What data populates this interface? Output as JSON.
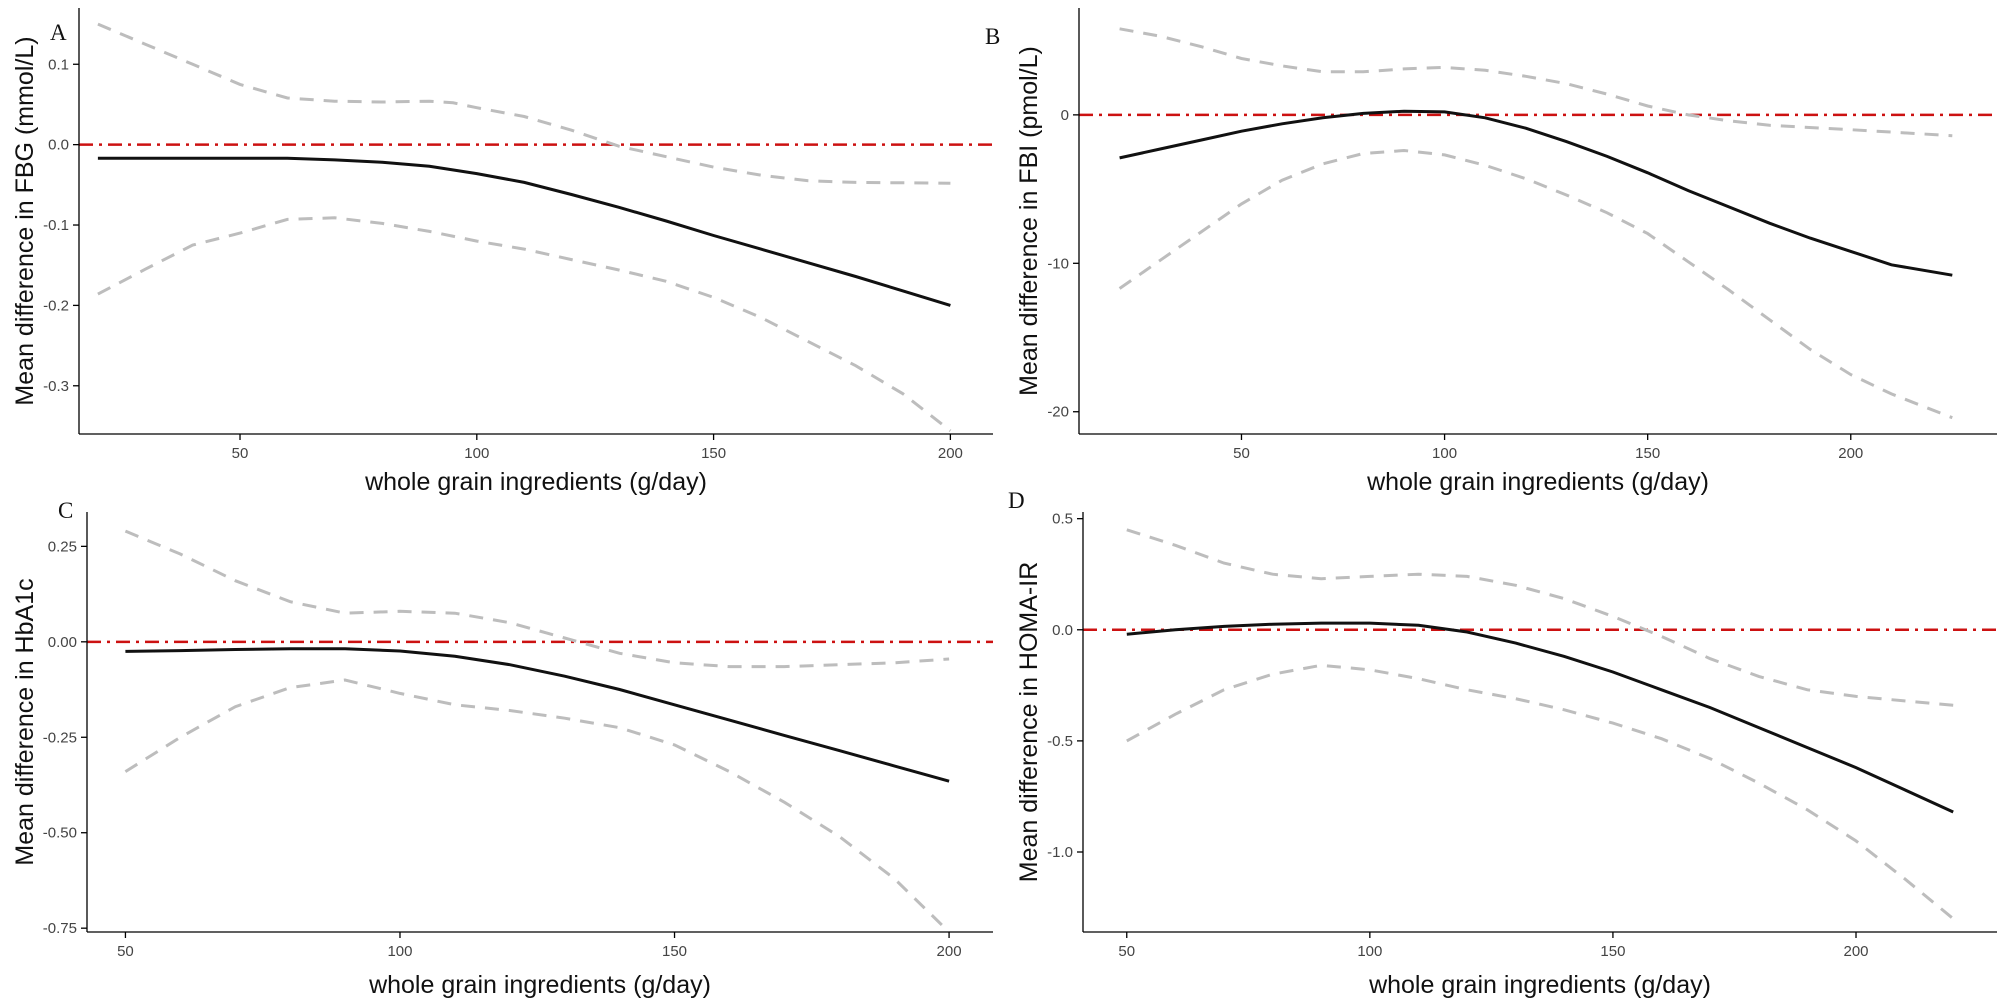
{
  "chart_data": [
    {
      "panel": "A",
      "type": "line",
      "xlabel": "whole grain ingredients (g/day)",
      "ylabel": "Mean difference in FBG (mmol/L)",
      "xlim": [
        16,
        209
      ],
      "ylim": [
        -0.36,
        0.17
      ],
      "xticks": [
        50,
        100,
        150,
        200
      ],
      "yticks": [
        -0.3,
        -0.2,
        -0.1,
        0.0,
        0.1
      ],
      "ytick_labels": [
        "-0.3",
        "-0.2",
        "-0.1",
        "0.0",
        "0.1"
      ],
      "reference_y": 0,
      "series": [
        {
          "role": "estimate",
          "points": [
            [
              20,
              -0.017
            ],
            [
              40,
              -0.017
            ],
            [
              60,
              -0.017
            ],
            [
              70,
              -0.019
            ],
            [
              80,
              -0.022
            ],
            [
              90,
              -0.027
            ],
            [
              100,
              -0.036
            ],
            [
              110,
              -0.047
            ],
            [
              120,
              -0.062
            ],
            [
              130,
              -0.078
            ],
            [
              140,
              -0.095
            ],
            [
              150,
              -0.113
            ],
            [
              160,
              -0.13
            ],
            [
              170,
              -0.147
            ],
            [
              180,
              -0.164
            ],
            [
              190,
              -0.182
            ],
            [
              200,
              -0.2
            ]
          ]
        },
        {
          "role": "upper",
          "points": [
            [
              20,
              0.15
            ],
            [
              30,
              0.125
            ],
            [
              40,
              0.1
            ],
            [
              50,
              0.075
            ],
            [
              60,
              0.058
            ],
            [
              70,
              0.054
            ],
            [
              80,
              0.053
            ],
            [
              90,
              0.054
            ],
            [
              95,
              0.052
            ],
            [
              100,
              0.046
            ],
            [
              110,
              0.035
            ],
            [
              120,
              0.018
            ],
            [
              130,
              -0.002
            ],
            [
              140,
              -0.015
            ],
            [
              150,
              -0.028
            ],
            [
              160,
              -0.038
            ],
            [
              170,
              -0.045
            ],
            [
              180,
              -0.047
            ],
            [
              200,
              -0.048
            ]
          ]
        },
        {
          "role": "lower",
          "points": [
            [
              20,
              -0.186
            ],
            [
              30,
              -0.155
            ],
            [
              40,
              -0.125
            ],
            [
              50,
              -0.11
            ],
            [
              60,
              -0.093
            ],
            [
              70,
              -0.091
            ],
            [
              80,
              -0.098
            ],
            [
              90,
              -0.108
            ],
            [
              100,
              -0.12
            ],
            [
              110,
              -0.13
            ],
            [
              120,
              -0.143
            ],
            [
              130,
              -0.156
            ],
            [
              140,
              -0.17
            ],
            [
              150,
              -0.19
            ],
            [
              160,
              -0.215
            ],
            [
              170,
              -0.245
            ],
            [
              180,
              -0.275
            ],
            [
              190,
              -0.31
            ],
            [
              200,
              -0.356
            ]
          ]
        }
      ]
    },
    {
      "panel": "B",
      "type": "line",
      "xlabel": "whole grain ingredients (g/day)",
      "ylabel": "Mean difference in FBI (pmol/L)",
      "xlim": [
        10,
        236
      ],
      "ylim": [
        -21.5,
        7.2
      ],
      "xticks": [
        50,
        100,
        150,
        200
      ],
      "yticks": [
        -20,
        -10,
        0
      ],
      "ytick_labels": [
        "-20",
        "-10",
        "0"
      ],
      "reference_y": 0,
      "series": [
        {
          "role": "estimate",
          "points": [
            [
              20,
              -2.9
            ],
            [
              30,
              -2.3
            ],
            [
              40,
              -1.7
            ],
            [
              50,
              -1.1
            ],
            [
              60,
              -0.6
            ],
            [
              70,
              -0.2
            ],
            [
              80,
              0.1
            ],
            [
              90,
              0.25
            ],
            [
              100,
              0.2
            ],
            [
              110,
              -0.2
            ],
            [
              120,
              -0.9
            ],
            [
              130,
              -1.8
            ],
            [
              140,
              -2.8
            ],
            [
              150,
              -3.9
            ],
            [
              160,
              -5.1
            ],
            [
              170,
              -6.2
            ],
            [
              180,
              -7.3
            ],
            [
              190,
              -8.3
            ],
            [
              200,
              -9.2
            ],
            [
              210,
              -10.1
            ],
            [
              225,
              -10.8
            ]
          ]
        },
        {
          "role": "upper",
          "points": [
            [
              20,
              5.8
            ],
            [
              30,
              5.3
            ],
            [
              40,
              4.6
            ],
            [
              50,
              3.8
            ],
            [
              60,
              3.3
            ],
            [
              70,
              2.9
            ],
            [
              80,
              2.9
            ],
            [
              90,
              3.1
            ],
            [
              100,
              3.2
            ],
            [
              110,
              3.0
            ],
            [
              120,
              2.6
            ],
            [
              130,
              2.1
            ],
            [
              140,
              1.4
            ],
            [
              150,
              0.6
            ],
            [
              160,
              0.0
            ],
            [
              170,
              -0.4
            ],
            [
              180,
              -0.7
            ],
            [
              200,
              -1.0
            ],
            [
              225,
              -1.4
            ]
          ]
        },
        {
          "role": "lower",
          "points": [
            [
              20,
              -11.7
            ],
            [
              30,
              -9.8
            ],
            [
              40,
              -7.9
            ],
            [
              50,
              -6.0
            ],
            [
              60,
              -4.4
            ],
            [
              70,
              -3.3
            ],
            [
              80,
              -2.6
            ],
            [
              90,
              -2.4
            ],
            [
              100,
              -2.7
            ],
            [
              110,
              -3.4
            ],
            [
              120,
              -4.3
            ],
            [
              130,
              -5.4
            ],
            [
              140,
              -6.6
            ],
            [
              150,
              -8.0
            ],
            [
              160,
              -9.9
            ],
            [
              170,
              -11.8
            ],
            [
              180,
              -13.8
            ],
            [
              190,
              -15.8
            ],
            [
              200,
              -17.5
            ],
            [
              210,
              -18.8
            ],
            [
              225,
              -20.4
            ]
          ]
        }
      ]
    },
    {
      "panel": "C",
      "type": "line",
      "xlabel": "whole grain ingredients (g/day)",
      "ylabel": "Mean difference in HbA1c",
      "xlim": [
        43,
        208
      ],
      "ylim": [
        -0.76,
        0.34
      ],
      "xticks": [
        50,
        100,
        150,
        200
      ],
      "yticks": [
        -0.75,
        -0.5,
        -0.25,
        0.0,
        0.25
      ],
      "ytick_labels": [
        "-0.75",
        "-0.50",
        "-0.25",
        "0.00",
        "0.25"
      ],
      "reference_y": 0,
      "series": [
        {
          "role": "estimate",
          "points": [
            [
              50,
              -0.025
            ],
            [
              60,
              -0.023
            ],
            [
              70,
              -0.02
            ],
            [
              80,
              -0.018
            ],
            [
              90,
              -0.018
            ],
            [
              100,
              -0.024
            ],
            [
              110,
              -0.038
            ],
            [
              120,
              -0.06
            ],
            [
              130,
              -0.09
            ],
            [
              140,
              -0.125
            ],
            [
              150,
              -0.165
            ],
            [
              160,
              -0.205
            ],
            [
              170,
              -0.245
            ],
            [
              180,
              -0.285
            ],
            [
              190,
              -0.325
            ],
            [
              200,
              -0.365
            ]
          ]
        },
        {
          "role": "upper",
          "points": [
            [
              50,
              0.29
            ],
            [
              60,
              0.23
            ],
            [
              70,
              0.16
            ],
            [
              80,
              0.105
            ],
            [
              90,
              0.075
            ],
            [
              100,
              0.08
            ],
            [
              110,
              0.075
            ],
            [
              120,
              0.05
            ],
            [
              130,
              0.01
            ],
            [
              140,
              -0.03
            ],
            [
              150,
              -0.055
            ],
            [
              160,
              -0.065
            ],
            [
              170,
              -0.065
            ],
            [
              180,
              -0.06
            ],
            [
              190,
              -0.055
            ],
            [
              200,
              -0.045
            ]
          ]
        },
        {
          "role": "lower",
          "points": [
            [
              50,
              -0.34
            ],
            [
              60,
              -0.25
            ],
            [
              70,
              -0.17
            ],
            [
              80,
              -0.12
            ],
            [
              90,
              -0.1
            ],
            [
              100,
              -0.135
            ],
            [
              110,
              -0.165
            ],
            [
              120,
              -0.18
            ],
            [
              130,
              -0.2
            ],
            [
              140,
              -0.225
            ],
            [
              150,
              -0.27
            ],
            [
              160,
              -0.34
            ],
            [
              170,
              -0.42
            ],
            [
              180,
              -0.51
            ],
            [
              190,
              -0.62
            ],
            [
              200,
              -0.76
            ]
          ]
        }
      ]
    },
    {
      "panel": "D",
      "type": "line",
      "xlabel": "whole grain ingredients (g/day)",
      "ylabel": "Mean difference in HOMA-IR",
      "xlim": [
        41,
        229
      ],
      "ylim": [
        -1.36,
        0.53
      ],
      "xticks": [
        50,
        100,
        150,
        200
      ],
      "yticks": [
        -1.0,
        -0.5,
        0.0,
        0.5
      ],
      "ytick_labels": [
        "-1.0",
        "-0.5",
        "0.0",
        "0.5"
      ],
      "reference_y": 0,
      "series": [
        {
          "role": "estimate",
          "points": [
            [
              50,
              -0.02
            ],
            [
              60,
              0.0
            ],
            [
              70,
              0.015
            ],
            [
              80,
              0.025
            ],
            [
              90,
              0.03
            ],
            [
              100,
              0.03
            ],
            [
              110,
              0.02
            ],
            [
              120,
              -0.01
            ],
            [
              130,
              -0.06
            ],
            [
              140,
              -0.12
            ],
            [
              150,
              -0.19
            ],
            [
              160,
              -0.27
            ],
            [
              170,
              -0.35
            ],
            [
              180,
              -0.44
            ],
            [
              190,
              -0.53
            ],
            [
              200,
              -0.62
            ],
            [
              210,
              -0.72
            ],
            [
              220,
              -0.82
            ]
          ]
        },
        {
          "role": "upper",
          "points": [
            [
              50,
              0.45
            ],
            [
              60,
              0.38
            ],
            [
              70,
              0.3
            ],
            [
              80,
              0.25
            ],
            [
              90,
              0.23
            ],
            [
              100,
              0.24
            ],
            [
              110,
              0.25
            ],
            [
              120,
              0.24
            ],
            [
              130,
              0.2
            ],
            [
              140,
              0.14
            ],
            [
              150,
              0.06
            ],
            [
              160,
              -0.03
            ],
            [
              170,
              -0.13
            ],
            [
              180,
              -0.21
            ],
            [
              190,
              -0.27
            ],
            [
              200,
              -0.3
            ],
            [
              210,
              -0.32
            ],
            [
              220,
              -0.34
            ]
          ]
        },
        {
          "role": "lower",
          "points": [
            [
              50,
              -0.5
            ],
            [
              60,
              -0.38
            ],
            [
              70,
              -0.27
            ],
            [
              80,
              -0.2
            ],
            [
              90,
              -0.16
            ],
            [
              100,
              -0.18
            ],
            [
              110,
              -0.22
            ],
            [
              120,
              -0.27
            ],
            [
              130,
              -0.31
            ],
            [
              140,
              -0.36
            ],
            [
              150,
              -0.42
            ],
            [
              160,
              -0.49
            ],
            [
              170,
              -0.58
            ],
            [
              180,
              -0.69
            ],
            [
              190,
              -0.81
            ],
            [
              200,
              -0.95
            ],
            [
              210,
              -1.12
            ],
            [
              220,
              -1.3
            ]
          ]
        }
      ]
    }
  ]
}
